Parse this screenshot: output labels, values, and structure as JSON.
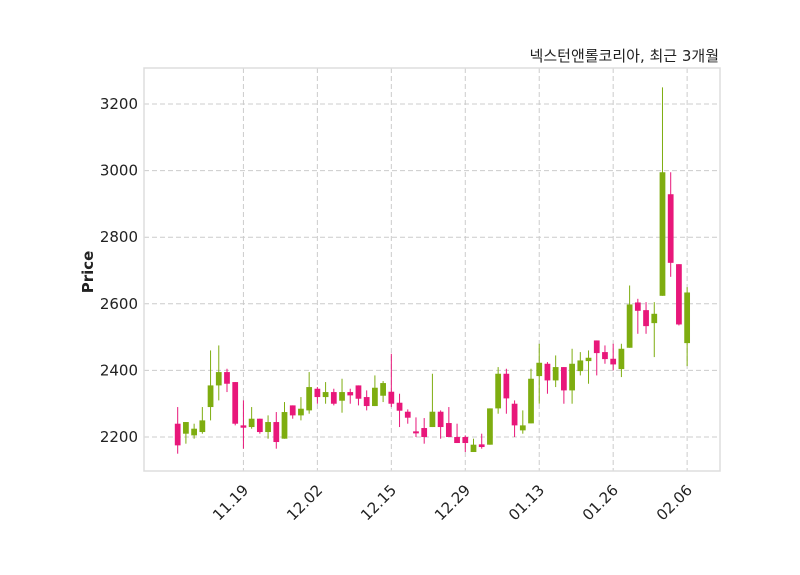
{
  "chart_data": {
    "type": "candlestick",
    "title": "넥스턴앤롤코리아, 최근 3개월",
    "xlabel": "",
    "ylabel": "Price",
    "ylim": [
      2098,
      3308
    ],
    "xlim": [
      -4.1,
      66.0
    ],
    "grid": true,
    "yticks": [
      2200,
      2400,
      2600,
      2800,
      3000,
      3200
    ],
    "xticks": [
      {
        "index": 8,
        "label": "11.19"
      },
      {
        "index": 17,
        "label": "12.02"
      },
      {
        "index": 26,
        "label": "12.15"
      },
      {
        "index": 35,
        "label": "12.29"
      },
      {
        "index": 44,
        "label": "01.13"
      },
      {
        "index": 53,
        "label": "01.26"
      },
      {
        "index": 62,
        "label": "02.06"
      }
    ],
    "colors": {
      "up": "#7ead10",
      "down": "#e8177a",
      "grid": "#cccccc",
      "frame": "#dddddd"
    },
    "ohlc_fields": [
      "open",
      "high",
      "low",
      "close"
    ],
    "candles": [
      [
        2240,
        2290,
        2150,
        2175
      ],
      [
        2210,
        2245,
        2180,
        2245
      ],
      [
        2205,
        2240,
        2195,
        2225
      ],
      [
        2215,
        2290,
        2210,
        2250
      ],
      [
        2290,
        2460,
        2250,
        2355
      ],
      [
        2355,
        2475,
        2310,
        2395
      ],
      [
        2395,
        2405,
        2335,
        2360
      ],
      [
        2365,
        2365,
        2235,
        2240
      ],
      [
        2235,
        2310,
        2165,
        2228
      ],
      [
        2230,
        2290,
        2225,
        2255
      ],
      [
        2255,
        2255,
        2210,
        2215
      ],
      [
        2215,
        2265,
        2195,
        2245
      ],
      [
        2245,
        2275,
        2165,
        2185
      ],
      [
        2195,
        2305,
        2195,
        2275
      ],
      [
        2295,
        2295,
        2255,
        2265
      ],
      [
        2265,
        2320,
        2250,
        2285
      ],
      [
        2280,
        2395,
        2270,
        2350
      ],
      [
        2345,
        2350,
        2300,
        2320
      ],
      [
        2320,
        2365,
        2300,
        2335
      ],
      [
        2335,
        2345,
        2295,
        2300
      ],
      [
        2309,
        2375,
        2273,
        2335
      ],
      [
        2335,
        2345,
        2300,
        2325
      ],
      [
        2355,
        2355,
        2295,
        2315
      ],
      [
        2320,
        2340,
        2280,
        2293
      ],
      [
        2293,
        2385,
        2293,
        2348
      ],
      [
        2324,
        2368,
        2305,
        2362
      ],
      [
        2336,
        2450,
        2290,
        2300
      ],
      [
        2303,
        2330,
        2230,
        2279
      ],
      [
        2276,
        2283,
        2240,
        2258
      ],
      [
        2217,
        2259,
        2200,
        2211
      ],
      [
        2227,
        2257,
        2180,
        2200
      ],
      [
        2230,
        2390,
        2230,
        2276
      ],
      [
        2276,
        2280,
        2195,
        2230
      ],
      [
        2242,
        2290,
        2200,
        2200
      ],
      [
        2200,
        2240,
        2182,
        2182
      ],
      [
        2200,
        2205,
        2155,
        2182
      ],
      [
        2155,
        2195,
        2155,
        2177
      ],
      [
        2178,
        2210,
        2165,
        2170
      ],
      [
        2177,
        2286,
        2177,
        2286
      ],
      [
        2286,
        2410,
        2270,
        2390
      ],
      [
        2390,
        2405,
        2270,
        2316
      ],
      [
        2300,
        2310,
        2200,
        2235
      ],
      [
        2220,
        2280,
        2210,
        2235
      ],
      [
        2241,
        2405,
        2241,
        2375
      ],
      [
        2383,
        2480,
        2300,
        2423
      ],
      [
        2420,
        2425,
        2330,
        2370
      ],
      [
        2370,
        2445,
        2350,
        2410
      ],
      [
        2410,
        2410,
        2300,
        2340
      ],
      [
        2340,
        2465,
        2300,
        2420
      ],
      [
        2398,
        2455,
        2385,
        2430
      ],
      [
        2428,
        2460,
        2360,
        2438
      ],
      [
        2490,
        2490,
        2385,
        2452
      ],
      [
        2455,
        2475,
        2420,
        2434
      ],
      [
        2435,
        2480,
        2400,
        2418
      ],
      [
        2404,
        2480,
        2380,
        2465
      ],
      [
        2468,
        2655,
        2468,
        2598
      ],
      [
        2604,
        2615,
        2510,
        2579
      ],
      [
        2581,
        2605,
        2510,
        2533
      ],
      [
        2542,
        2605,
        2440,
        2570
      ],
      [
        2624,
        3250,
        2624,
        2995
      ],
      [
        2929,
        2995,
        2681,
        2723
      ],
      [
        2719,
        2719,
        2535,
        2538
      ],
      [
        2482,
        2650,
        2413,
        2634
      ]
    ]
  }
}
